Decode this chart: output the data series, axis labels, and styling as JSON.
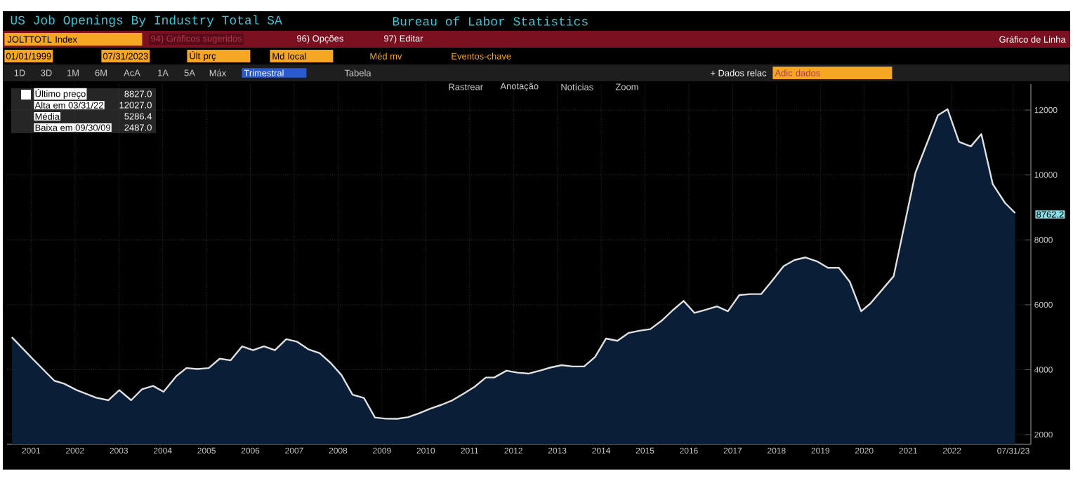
{
  "chart_data": {
    "type": "area",
    "title": "US Job Openings By Industry Total SA",
    "subtitle": "Bureau of Labor Statistics",
    "series": [
      {
        "name": "Último preço",
        "color": "#0b1e38",
        "x": [
          2001.06,
          2001.53,
          2002.03,
          2002.25,
          2002.54,
          2002.98,
          2003.26,
          2003.51,
          2003.78,
          2004.03,
          2004.28,
          2004.52,
          2004.81,
          2005.04,
          2005.29,
          2005.55,
          2005.8,
          2006.05,
          2006.31,
          2006.56,
          2006.81,
          2007.06,
          2007.32,
          2007.57,
          2007.82,
          2008.08,
          2008.33,
          2008.58,
          2008.83,
          2009.09,
          2009.34,
          2009.59,
          2009.85,
          2010.1,
          2010.35,
          2010.6,
          2010.86,
          2011.11,
          2011.36,
          2011.61,
          2011.87,
          2012.06,
          2012.34,
          2012.59,
          2012.84,
          2013.1,
          2013.35,
          2013.6,
          2013.85,
          2014.11,
          2014.36,
          2014.61,
          2014.87,
          2015.12,
          2015.37,
          2015.62,
          2015.88,
          2016.13,
          2016.38,
          2016.63,
          2016.89,
          2017.14,
          2017.39,
          2017.65,
          2017.9,
          2018.15,
          2018.4,
          2018.66,
          2018.91,
          2019.16,
          2019.42,
          2019.67,
          2019.92,
          2020.17,
          2020.43,
          2020.64,
          2021.17,
          2021.67,
          2022.18,
          2022.4,
          2022.66,
          2022.93,
          2023.17,
          2023.43,
          2023.71,
          2023.94
        ],
        "values": [
          5000,
          4340,
          3660,
          3570,
          3370,
          3140,
          3060,
          3370,
          3060,
          3400,
          3500,
          3320,
          3800,
          4050,
          4020,
          4050,
          4340,
          4290,
          4720,
          4600,
          4720,
          4600,
          4940,
          4860,
          4630,
          4510,
          4210,
          3830,
          3230,
          3130,
          2530,
          2490,
          2487,
          2540,
          2660,
          2800,
          2920,
          3060,
          3260,
          3470,
          3760,
          3760,
          3970,
          3910,
          3880,
          3970,
          4070,
          4140,
          4100,
          4100,
          4390,
          4960,
          4890,
          5130,
          5200,
          5250,
          5510,
          5830,
          6120,
          5750,
          5850,
          5950,
          5800,
          6300,
          6330,
          6330,
          6740,
          7190,
          7380,
          7460,
          7340,
          7140,
          7140,
          6710,
          5800,
          6040,
          6880,
          10080,
          11840,
          12027,
          11020,
          10880,
          11260,
          9720,
          9140,
          8827
        ]
      }
    ],
    "xlim": [
      2000.95,
      2024.3
    ],
    "ylim": [
      1700,
      12800
    ],
    "xticks": [
      {
        "value": 2001.5,
        "label": "2001"
      },
      {
        "value": 2002.5,
        "label": "2002"
      },
      {
        "value": 2003.5,
        "label": "2003"
      },
      {
        "value": 2004.5,
        "label": "2004"
      },
      {
        "value": 2005.5,
        "label": "2005"
      },
      {
        "value": 2006.5,
        "label": "2006"
      },
      {
        "value": 2007.5,
        "label": "2007"
      },
      {
        "value": 2008.5,
        "label": "2008"
      },
      {
        "value": 2009.5,
        "label": "2009"
      },
      {
        "value": 2010.5,
        "label": "2010"
      },
      {
        "value": 2011.5,
        "label": "2011"
      },
      {
        "value": 2012.5,
        "label": "2012"
      },
      {
        "value": 2013.5,
        "label": "2013"
      },
      {
        "value": 2014.5,
        "label": "2014"
      },
      {
        "value": 2015.5,
        "label": "2015"
      },
      {
        "value": 2016.5,
        "label": "2016"
      },
      {
        "value": 2017.5,
        "label": "2017"
      },
      {
        "value": 2018.5,
        "label": "2018"
      },
      {
        "value": 2019.5,
        "label": "2019"
      },
      {
        "value": 2020.5,
        "label": "2020"
      },
      {
        "value": 2021.5,
        "label": "2021"
      },
      {
        "value": 2022.5,
        "label": "2022"
      },
      {
        "value": 2023.9,
        "label": "07/31/23"
      }
    ],
    "yticks": [
      2000,
      4000,
      6000,
      8000,
      10000,
      12000
    ],
    "grid": true,
    "legend": "top left",
    "annotations": [
      "JOLTTOTL Index",
      "94) Gráficos sugeridos",
      "96) Opções",
      "97) Editar",
      "Gráfico de Linha",
      "01/01/1999",
      "07/31/2023",
      "Últ prç",
      "Md local",
      "Méd mv",
      "Eventos-chave",
      "1D",
      "3D",
      "1M",
      "6M",
      "AcA",
      "1A",
      "5A",
      "Máx",
      "Trimestral",
      "Tabela",
      "+ Dados relac",
      "Adic dados",
      "Rastrear",
      "Anotação",
      "Notícias",
      "Zoom",
      "Alta em 03/31/22",
      "Média",
      "Baixa em 09/30/09",
      "8827.0",
      "12027.0",
      "5286.4",
      "2487.0",
      "8762.2"
    ]
  }
}
